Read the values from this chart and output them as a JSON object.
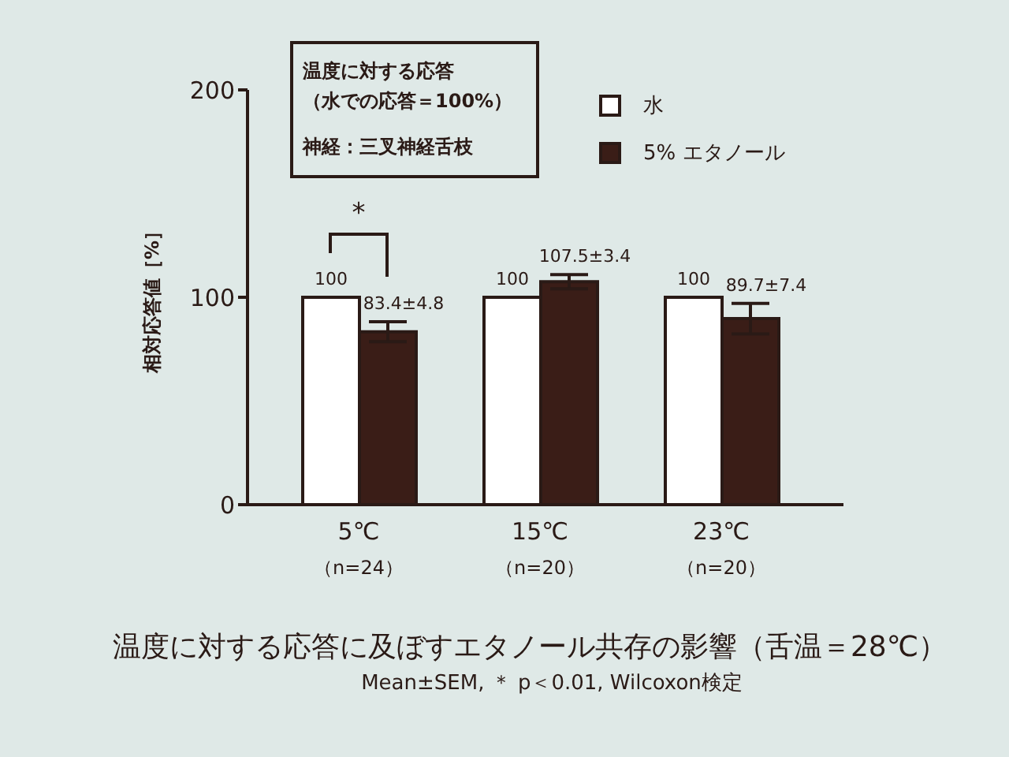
{
  "chart_data": {
    "type": "bar",
    "title": "温度に対する応答に及ぼすエタノール共存の影響（舌温＝28℃）",
    "subtitle": "Mean±SEM, ＊ p＜0.01, Wilcoxon検定",
    "ylabel": "相対応答値［%］",
    "categories": [
      "5℃\n（n=24）",
      "15℃\n（n=20）",
      "23℃\n（n=20）"
    ],
    "series": [
      {
        "name": "水",
        "color": "#ffffff",
        "values": [
          100,
          100,
          100
        ],
        "value_labels": [
          "100",
          "100",
          "100"
        ]
      },
      {
        "name": "5% エタノール",
        "color": "#3a1d17",
        "values": [
          83.4,
          107.5,
          89.7
        ],
        "errors": [
          4.8,
          3.4,
          7.4
        ],
        "value_labels": [
          "83.4±4.8",
          "107.5±3.4",
          "89.7±7.4"
        ]
      }
    ],
    "ylim": [
      0,
      200
    ],
    "yticks": [
      0,
      100,
      200
    ],
    "legend": "top right",
    "annotations": [
      "温度に対する応答",
      "（水での応答＝100%）",
      "神経：三叉神経舌枝",
      "*"
    ]
  }
}
